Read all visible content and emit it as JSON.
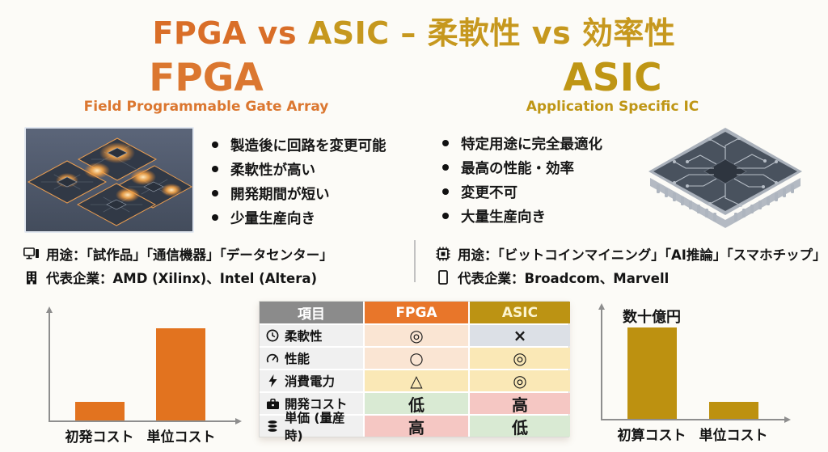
{
  "title": {
    "fpga_part": "FPGA vs ",
    "asic_part": "ASIC – 柔軟性 vs 効率性",
    "fpga_color": "#D96E28",
    "asic_color": "#C6981E"
  },
  "fpga": {
    "heading": "FPGA",
    "subtitle": "Field Programmable Gate Array",
    "accent": "#DB7730",
    "bullets": [
      "製造後に回路を変更可能",
      "柔軟性が高い",
      "開発期間が短い",
      "少量生産向き"
    ],
    "usage": "用途：「試作品」「通信機器」「データセンター」",
    "companies": "代表企業：AMD (Xilinx)、Intel (Altera)"
  },
  "asic": {
    "heading": "ASIC",
    "subtitle": "Application Specific IC",
    "accent": "#BF9615",
    "bullets": [
      "特定用途に完全最適化",
      "最高の性能・効率",
      "変更不可",
      "大量生産向き"
    ],
    "usage": "用途：「ビットコインマイニング」「AI推論」「スマホチップ」",
    "companies": "代表企業：Broadcom、Marvell"
  },
  "table": {
    "headers": [
      "項目",
      "FPGA",
      "ASIC"
    ],
    "header_colors": {
      "item": "#8B8B8B",
      "fpga": "#E8762A",
      "asic": "#BC9313"
    },
    "rows": [
      {
        "icon": "clock-icon",
        "label": "柔軟性",
        "fpga": {
          "value": "◎",
          "bg": "#FAE5D3"
        },
        "asic": {
          "value": "×",
          "bg": "#DCE0E6"
        }
      },
      {
        "icon": "gauge-icon",
        "label": "性能",
        "fpga": {
          "value": "○",
          "bg": "#FAE5D3"
        },
        "asic": {
          "value": "◎",
          "bg": "#FAE8B6"
        }
      },
      {
        "icon": "bolt-icon",
        "label": "消費電力",
        "fpga": {
          "value": "△",
          "bg": "#FAE8B6"
        },
        "asic": {
          "value": "◎",
          "bg": "#FAE8B6"
        }
      },
      {
        "icon": "briefcase-icon",
        "label": "開発コスト",
        "fpga": {
          "value": "低",
          "bg": "#D9EAD3"
        },
        "asic": {
          "value": "高",
          "bg": "#F5C7C3"
        }
      },
      {
        "icon": "coins-icon",
        "label": "単価 (量産時)",
        "fpga": {
          "value": "高",
          "bg": "#F5C7C3"
        },
        "asic": {
          "value": "低",
          "bg": "#D9EAD3"
        }
      }
    ]
  },
  "chart_data": [
    {
      "type": "bar",
      "side": "FPGA",
      "categories": [
        "初発コスト",
        "単位コスト"
      ],
      "values": [
        20,
        100
      ],
      "unit": "relative-height-%",
      "color": "#E2731F",
      "annotation": "",
      "axes": "unlabeled arrows, no gridlines"
    },
    {
      "type": "bar",
      "side": "ASIC",
      "categories": [
        "初算コスト",
        "単位コスト"
      ],
      "values": [
        100,
        19
      ],
      "unit": "relative-height-%",
      "color": "#BD9110",
      "annotation": "数十億円",
      "axes": "unlabeled arrows, no gridlines"
    }
  ]
}
